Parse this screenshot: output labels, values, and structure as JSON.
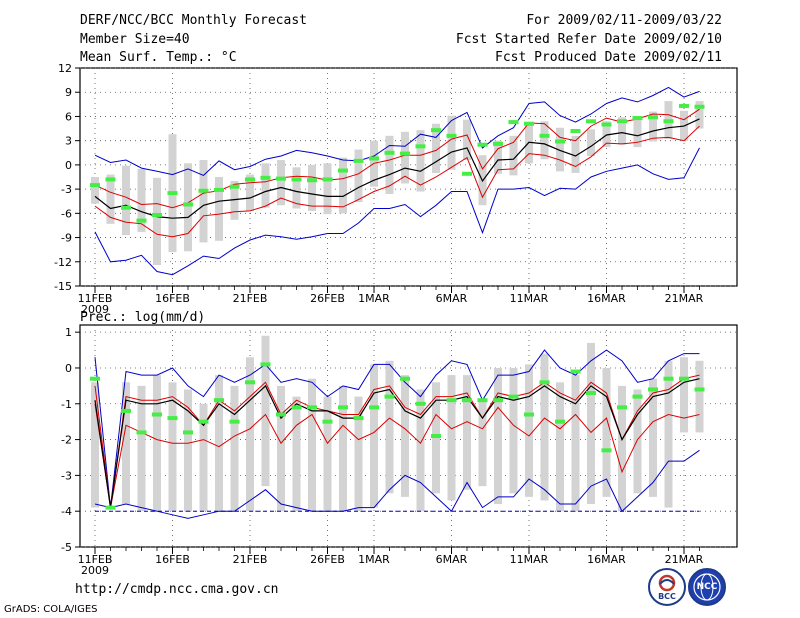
{
  "header": {
    "title": "DERF/NCC/BCC Monthly Forecast",
    "member_size": "Member Size=40",
    "variable": "Mean Surf. Temp.: °C",
    "period": "For 2009/02/11-2009/03/22",
    "fcst_started": "Fcst Started Refer Date 2009/02/10",
    "fcst_produced": "Fcst Produced Date 2009/02/11"
  },
  "footer": {
    "url": "http://cmdp.ncc.cma.gov.cn",
    "credit": "GrADS: COLA/IGES",
    "logo_left": "BCC",
    "logo_right": "NCC"
  },
  "colors": {
    "box": "#d3d3d3",
    "median": "#000000",
    "quartile": "#dd0000",
    "extreme": "#0000cc",
    "obs": "#44ee44",
    "grid": "#555555"
  },
  "chart_data": [
    {
      "type": "line",
      "title": "Mean Surf. Temp.: °C",
      "x_tick_labels": [
        "11FEB",
        "16FEB",
        "21FEB",
        "26FEB",
        "1MAR",
        "6MAR",
        "11MAR",
        "16MAR",
        "21MAR"
      ],
      "x_tick_index": [
        0,
        5,
        10,
        15,
        18,
        23,
        28,
        33,
        38
      ],
      "x_sub_label": "2009",
      "ylim": [
        -15,
        12
      ],
      "y_ticks": [
        12,
        9,
        6,
        3,
        0,
        -3,
        -6,
        -9,
        -12,
        -15
      ],
      "series": {
        "max": [
          1.2,
          0.3,
          0.6,
          -0.4,
          -0.8,
          -1.2,
          -0.5,
          -1.3,
          0.5,
          -0.6,
          -0.2,
          0.7,
          1.1,
          1.8,
          1.5,
          1.1,
          0.6,
          0.5,
          1.1,
          2.4,
          2.3,
          3.8,
          3.4,
          5.5,
          6.5,
          2.1,
          3.6,
          4.6,
          7.6,
          7.8,
          6.1,
          5.3,
          6.3,
          7.6,
          8.3,
          7.8,
          8.6,
          9.6,
          8.4,
          9.1
        ],
        "q75": [
          -2.5,
          -3.4,
          -4.0,
          -4.9,
          -4.8,
          -5.3,
          -4.7,
          -3.5,
          -3.2,
          -2.4,
          -2.2,
          -2.1,
          -1.6,
          -1.4,
          -1.5,
          -1.9,
          -1.7,
          -1.1,
          0.2,
          0.6,
          1.2,
          1.2,
          1.8,
          3.2,
          3.7,
          -0.5,
          2.0,
          2.8,
          5.2,
          5.1,
          3.4,
          3.0,
          4.8,
          5.8,
          5.3,
          5.7,
          6.3,
          6.2,
          5.6,
          6.9
        ],
        "median": [
          -3.9,
          -5.4,
          -5.0,
          -5.8,
          -6.4,
          -6.6,
          -6.5,
          -5.0,
          -4.5,
          -4.3,
          -4.1,
          -3.3,
          -2.8,
          -3.3,
          -3.6,
          -3.9,
          -3.9,
          -2.8,
          -1.9,
          -1.2,
          -0.4,
          -0.8,
          0.4,
          1.6,
          2.1,
          -2.0,
          0.6,
          0.7,
          2.8,
          2.6,
          1.8,
          1.1,
          2.3,
          3.7,
          4.0,
          3.6,
          4.2,
          4.6,
          4.8,
          5.7
        ],
        "q25": [
          -5.1,
          -6.5,
          -7.1,
          -7.3,
          -8.6,
          -8.9,
          -8.5,
          -6.3,
          -6.1,
          -5.8,
          -5.7,
          -5.1,
          -4.1,
          -4.8,
          -5.1,
          -5.1,
          -5.2,
          -4.3,
          -3.3,
          -2.6,
          -1.4,
          -2.5,
          -1.5,
          -0.3,
          0.9,
          -4.0,
          -0.6,
          -0.5,
          1.4,
          1.2,
          0.6,
          -0.2,
          1.0,
          2.7,
          2.6,
          2.8,
          3.3,
          3.4,
          3.0,
          4.8
        ],
        "min": [
          -8.3,
          -12.0,
          -11.8,
          -11.2,
          -13.2,
          -13.6,
          -12.5,
          -11.3,
          -11.6,
          -10.3,
          -9.3,
          -8.7,
          -8.9,
          -9.2,
          -8.9,
          -8.5,
          -8.5,
          -7.2,
          -5.4,
          -5.4,
          -4.9,
          -6.4,
          -5.0,
          -3.3,
          -3.3,
          -8.4,
          -3.0,
          -3.0,
          -2.8,
          -3.8,
          -2.9,
          -3.0,
          -1.5,
          -0.8,
          -0.4,
          0.0,
          -1.1,
          -1.8,
          -1.6,
          2.1
        ],
        "box_hi": [
          -1.5,
          -1.2,
          -0.1,
          -0.5,
          -1.6,
          3.8,
          0.2,
          0.6,
          -1.5,
          -2.0,
          -1.2,
          0.2,
          0.6,
          -0.3,
          0.0,
          0.2,
          0.9,
          1.9,
          3.0,
          3.6,
          4.1,
          4.3,
          5.1,
          6.1,
          5.6,
          1.2,
          3.0,
          3.6,
          5.1,
          5.4,
          4.6,
          3.6,
          4.4,
          5.4,
          5.9,
          5.9,
          6.6,
          7.9,
          6.7,
          7.9
        ],
        "box_lo": [
          -4.8,
          -7.3,
          -8.7,
          -8.3,
          -12.4,
          -10.8,
          -10.7,
          -9.6,
          -9.4,
          -6.8,
          -5.7,
          -5.3,
          -5.0,
          -5.4,
          -5.7,
          -6.1,
          -6.0,
          -4.6,
          -2.7,
          -3.6,
          -2.3,
          -3.3,
          -1.0,
          -0.6,
          0.6,
          -5.0,
          -1.1,
          -1.3,
          0.2,
          0.7,
          -0.8,
          -1.0,
          1.1,
          2.2,
          2.5,
          2.2,
          2.9,
          3.2,
          3.0,
          4.5
        ],
        "obs": [
          -2.5,
          -1.8,
          -5.3,
          -6.9,
          -6.2,
          -3.5,
          -4.9,
          -3.2,
          -3.1,
          -2.7,
          -1.8,
          -1.6,
          -1.7,
          -1.8,
          -1.9,
          -1.8,
          -0.7,
          0.5,
          0.8,
          1.5,
          1.4,
          2.3,
          4.3,
          3.6,
          -1.1,
          2.5,
          2.6,
          5.3,
          5.1,
          3.6,
          2.9,
          4.2,
          5.4,
          5.0,
          5.4,
          5.8,
          5.9,
          5.4,
          7.3,
          7.2
        ]
      }
    },
    {
      "type": "line",
      "title": "Prec.: log(mm/d)",
      "x_tick_labels": [
        "11FEB",
        "16FEB",
        "21FEB",
        "26FEB",
        "1MAR",
        "6MAR",
        "11MAR",
        "16MAR",
        "21MAR"
      ],
      "x_tick_index": [
        0,
        5,
        10,
        15,
        18,
        23,
        28,
        33,
        38
      ],
      "x_sub_label": "2009",
      "ylim": [
        -5,
        1.2
      ],
      "y_ticks": [
        1,
        0,
        -1,
        -2,
        -3,
        -4,
        -5
      ],
      "series": {
        "max": [
          0.3,
          -3.9,
          -0.1,
          -0.2,
          -0.2,
          0.0,
          -0.5,
          -0.8,
          -0.2,
          -0.4,
          -0.2,
          0.1,
          -0.4,
          -0.3,
          -0.4,
          -0.8,
          -0.5,
          -0.6,
          0.1,
          0.1,
          -0.4,
          -0.8,
          -0.2,
          0.2,
          0.1,
          -0.9,
          -0.2,
          -0.2,
          -0.1,
          0.5,
          0.0,
          -0.2,
          0.2,
          0.5,
          0.2,
          -0.4,
          -0.3,
          0.2,
          0.4,
          0.4
        ],
        "q75": [
          -0.5,
          -3.9,
          -0.8,
          -0.9,
          -0.9,
          -0.8,
          -1.1,
          -1.6,
          -0.9,
          -1.2,
          -0.8,
          -0.4,
          -1.3,
          -0.9,
          -1.1,
          -1.2,
          -1.3,
          -1.3,
          -0.6,
          -0.5,
          -1.1,
          -1.3,
          -0.8,
          -0.8,
          -0.7,
          -1.4,
          -0.7,
          -0.8,
          -0.7,
          -0.4,
          -0.7,
          -0.9,
          -0.4,
          -0.7,
          -2.0,
          -1.2,
          -0.7,
          -0.6,
          -0.3,
          -0.2
        ],
        "median": [
          -0.9,
          -3.9,
          -0.9,
          -1.0,
          -1.0,
          -0.9,
          -1.2,
          -1.6,
          -1.0,
          -1.3,
          -0.9,
          -0.5,
          -1.4,
          -1.0,
          -1.2,
          -1.2,
          -1.4,
          -1.4,
          -0.7,
          -0.6,
          -1.2,
          -1.4,
          -0.9,
          -0.9,
          -0.8,
          -1.4,
          -0.8,
          -0.9,
          -0.8,
          -0.5,
          -0.8,
          -1.0,
          -0.5,
          -0.8,
          -2.0,
          -1.3,
          -0.8,
          -0.7,
          -0.4,
          -0.3
        ],
        "q25": [
          -1.0,
          -3.9,
          -1.6,
          -1.8,
          -2.0,
          -2.1,
          -2.1,
          -2.0,
          -2.2,
          -1.9,
          -1.7,
          -1.3,
          -2.1,
          -1.6,
          -1.3,
          -2.1,
          -1.6,
          -2.0,
          -1.8,
          -1.4,
          -1.7,
          -2.1,
          -1.3,
          -1.7,
          -1.5,
          -1.7,
          -1.1,
          -1.6,
          -1.9,
          -1.4,
          -1.7,
          -1.3,
          -1.8,
          -1.4,
          -2.9,
          -2.0,
          -1.5,
          -1.3,
          -1.4,
          -1.3
        ],
        "min": [
          -3.8,
          -3.9,
          -3.8,
          -3.9,
          -4.0,
          -4.1,
          -4.2,
          -4.1,
          -4.0,
          -4.0,
          -3.7,
          -3.4,
          -3.8,
          -3.9,
          -4.0,
          -4.0,
          -4.0,
          -3.9,
          -3.9,
          -3.4,
          -3.0,
          -3.2,
          -3.6,
          -4.0,
          -3.2,
          -3.9,
          -3.6,
          -3.6,
          -3.1,
          -3.4,
          -3.8,
          -3.8,
          -3.3,
          -3.1,
          -4.0,
          -3.6,
          -3.2,
          -2.6,
          -2.6,
          -2.3
        ],
        "box_hi": [
          -0.4,
          -4.0,
          -0.4,
          -0.5,
          -0.2,
          -0.4,
          -0.6,
          -1.0,
          -0.2,
          -0.5,
          0.3,
          0.9,
          -0.5,
          -0.8,
          -0.3,
          -0.8,
          -0.5,
          -0.8,
          0.1,
          0.2,
          -0.2,
          -0.6,
          -0.4,
          -0.2,
          -0.2,
          -0.9,
          0.0,
          0.0,
          0.1,
          0.4,
          -0.4,
          -0.2,
          0.7,
          0.0,
          -0.5,
          -0.6,
          -0.3,
          0.2,
          0.3,
          0.2
        ],
        "box_lo": [
          -3.9,
          -4.0,
          -3.8,
          -4.0,
          -4.0,
          -4.0,
          -4.0,
          -4.0,
          -4.0,
          -4.0,
          -4.0,
          -3.3,
          -4.0,
          -4.0,
          -4.0,
          -4.0,
          -4.0,
          -4.0,
          -3.9,
          -3.5,
          -3.6,
          -4.0,
          -3.5,
          -3.7,
          -3.4,
          -3.3,
          -3.8,
          -3.5,
          -3.6,
          -3.7,
          -4.0,
          -4.0,
          -3.8,
          -3.6,
          -4.0,
          -3.5,
          -3.6,
          -3.9,
          -1.8,
          -1.8
        ],
        "obs": [
          -0.3,
          -3.9,
          -1.2,
          -1.8,
          -1.3,
          -1.4,
          -1.8,
          -1.5,
          -0.9,
          -1.5,
          -0.4,
          0.1,
          -1.3,
          -1.1,
          -1.1,
          -1.5,
          -1.1,
          -1.4,
          -1.1,
          -0.8,
          -0.3,
          -1.0,
          -1.9,
          -0.9,
          -0.9,
          -0.9,
          -0.9,
          -0.8,
          -1.3,
          -0.4,
          -1.5,
          -0.1,
          -0.7,
          -2.3,
          -1.1,
          -0.8,
          -0.6,
          -0.3,
          -0.3,
          -0.6
        ]
      }
    }
  ]
}
